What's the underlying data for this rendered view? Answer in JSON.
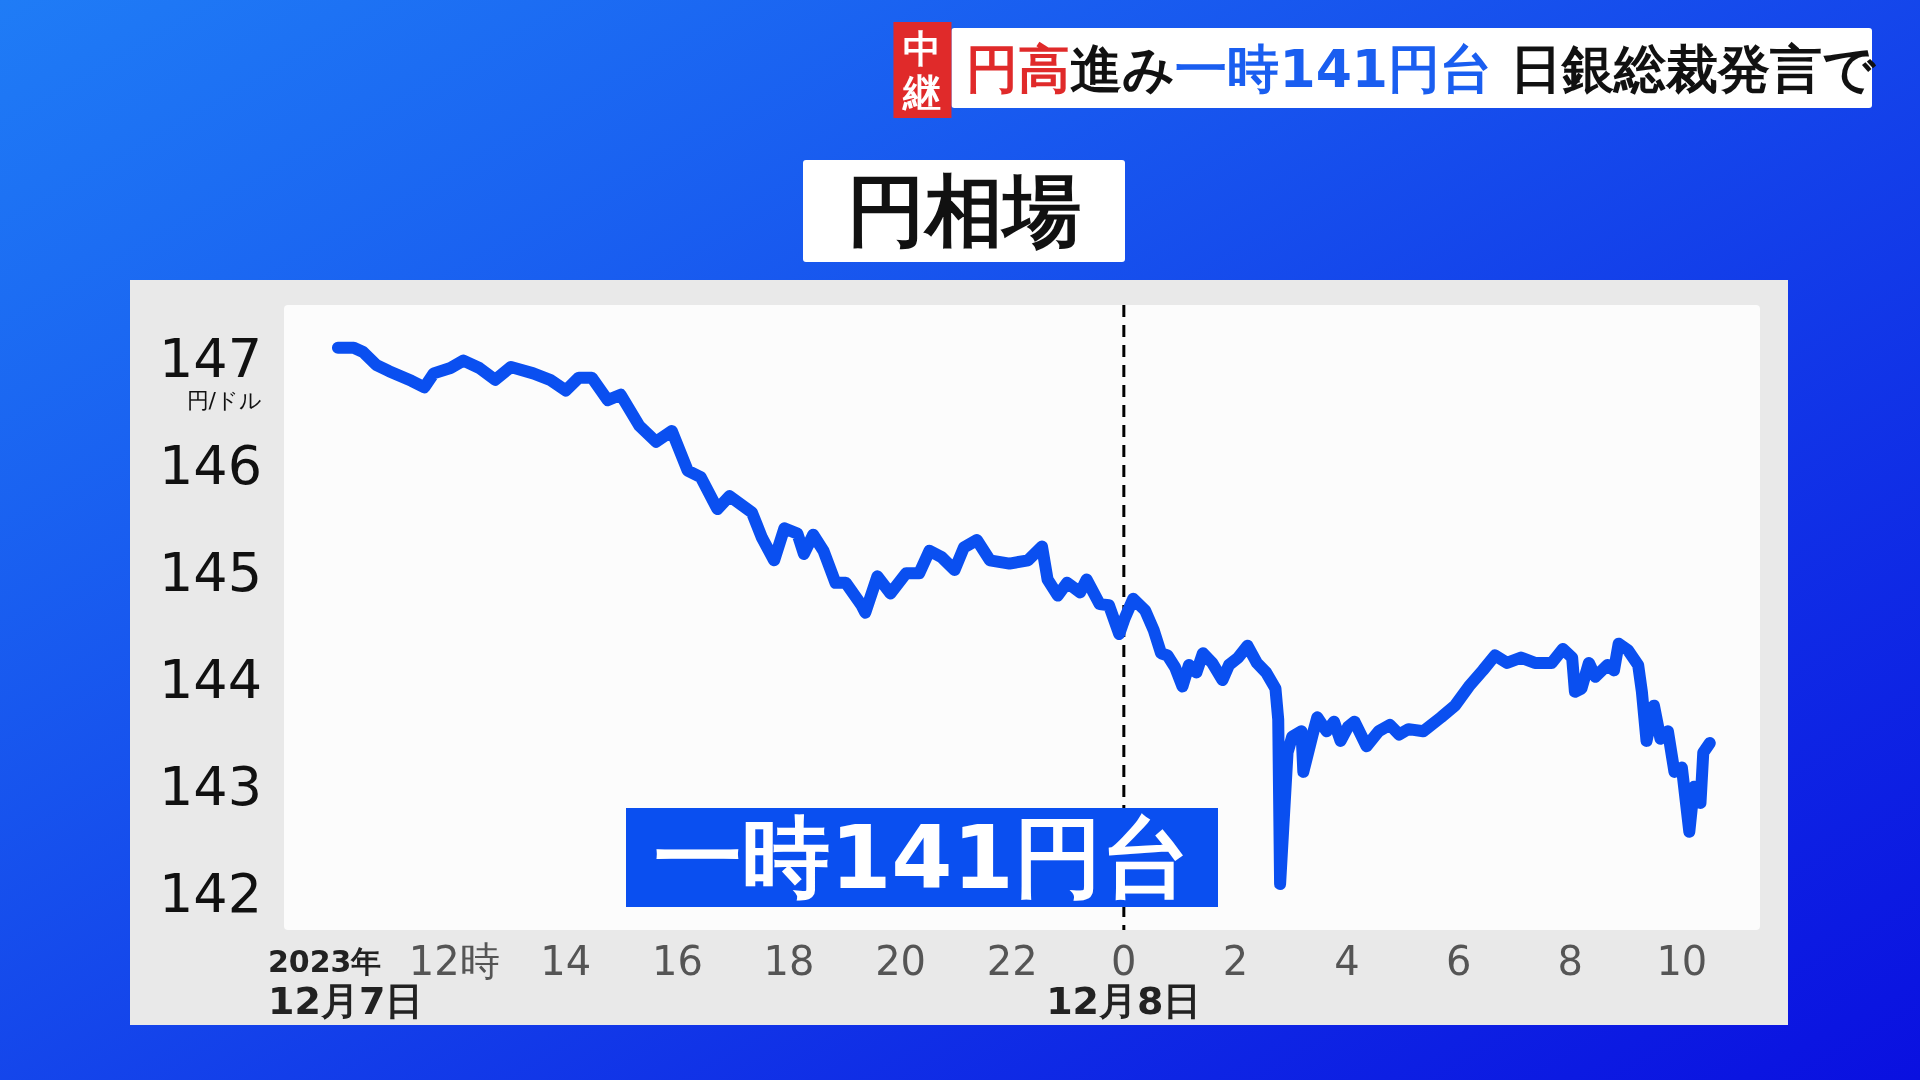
{
  "chart_data": {
    "type": "line",
    "title": "円相場",
    "ylabel": "円/ドル",
    "annotations": [
      "中継",
      "円高",
      "進み",
      "一時141円台",
      "日銀総裁発言で",
      "一時141円台",
      "2023年",
      "12月7日",
      "12月8日"
    ],
    "xlim": [
      "2023-12-07T08:57",
      "2023-12-08T11:24"
    ],
    "ylim": [
      141.65,
      147.5
    ],
    "xticks": [
      {
        "value": "2023-12-07T12:00",
        "label": "12時"
      },
      {
        "value": "2023-12-07T14:00",
        "label": "14"
      },
      {
        "value": "2023-12-07T16:00",
        "label": "16"
      },
      {
        "value": "2023-12-07T18:00",
        "label": "18"
      },
      {
        "value": "2023-12-07T20:00",
        "label": "20"
      },
      {
        "value": "2023-12-07T22:00",
        "label": "22"
      },
      {
        "value": "2023-12-08T00:00",
        "label": "0"
      },
      {
        "value": "2023-12-08T02:00",
        "label": "2"
      },
      {
        "value": "2023-12-08T04:00",
        "label": "4"
      },
      {
        "value": "2023-12-08T06:00",
        "label": "6"
      },
      {
        "value": "2023-12-08T08:00",
        "label": "8"
      },
      {
        "value": "2023-12-08T10:00",
        "label": "10"
      }
    ],
    "yticks": [
      142,
      143,
      144,
      145,
      146,
      147
    ],
    "grid": false,
    "marker": "none",
    "line_style": "solid",
    "ref_lines": [
      {
        "axis": "x",
        "value": "2023-12-08T00:00",
        "label": null,
        "color": "#000000",
        "line_style": "dashed"
      }
    ],
    "series": [
      {
        "color": "#0a4ff0",
        "x": [
          "2023-12-07T09:55",
          "2023-12-07T10:12",
          "2023-12-07T10:22",
          "2023-12-07T10:36",
          "2023-12-07T10:50",
          "2023-12-07T11:14",
          "2023-12-07T11:28",
          "2023-12-07T11:38",
          "2023-12-07T11:56",
          "2023-12-07T12:10",
          "2023-12-07T12:27",
          "2023-12-07T12:44",
          "2023-12-07T13:01",
          "2023-12-07T13:25",
          "2023-12-07T13:43",
          "2023-12-07T14:00",
          "2023-12-07T14:14",
          "2023-12-07T14:28",
          "2023-12-07T14:45",
          "2023-12-07T14:59",
          "2023-12-07T15:19",
          "2023-12-07T15:37",
          "2023-12-07T15:54",
          "2023-12-07T16:11",
          "2023-12-07T16:25",
          "2023-12-07T16:43",
          "2023-12-07T16:56",
          "2023-12-07T17:20",
          "2023-12-07T17:31",
          "2023-12-07T17:44",
          "2023-12-07T17:55",
          "2023-12-07T18:09",
          "2023-12-07T18:16",
          "2023-12-07T18:26",
          "2023-12-07T18:37",
          "2023-12-07T18:50",
          "2023-12-07T19:01",
          "2023-12-07T19:18",
          "2023-12-07T19:22",
          "2023-12-07T19:35",
          "2023-12-07T19:49",
          "2023-12-07T20:06",
          "2023-12-07T20:20",
          "2023-12-07T20:31",
          "2023-12-07T20:44",
          "2023-12-07T20:58",
          "2023-12-07T21:08",
          "2023-12-07T21:22",
          "2023-12-07T21:36",
          "2023-12-07T21:57",
          "2023-12-07T22:17",
          "2023-12-07T22:32",
          "2023-12-07T22:38",
          "2023-12-07T22:49",
          "2023-12-07T22:59",
          "2023-12-07T23:13",
          "2023-12-07T23:20",
          "2023-12-07T23:34",
          "2023-12-07T23:44",
          "2023-12-07T23:55",
          "2023-12-08T00:01",
          "2023-12-08T00:10",
          "2023-12-08T00:23",
          "2023-12-08T00:32",
          "2023-12-08T00:40",
          "2023-12-08T00:47",
          "2023-12-08T00:55",
          "2023-12-08T01:03",
          "2023-12-08T01:10",
          "2023-12-08T01:18",
          "2023-12-08T01:25",
          "2023-12-08T01:35",
          "2023-12-08T01:46",
          "2023-12-08T01:53",
          "2023-12-08T02:03",
          "2023-12-08T02:13",
          "2023-12-08T02:23",
          "2023-12-08T02:33",
          "2023-12-08T02:43",
          "2023-12-08T02:46",
          "2023-12-08T02:48",
          "2023-12-08T02:56",
          "2023-12-08T03:01",
          "2023-12-08T03:11",
          "2023-12-08T03:13",
          "2023-12-08T03:23",
          "2023-12-08T03:28",
          "2023-12-08T03:38",
          "2023-12-08T03:46",
          "2023-12-08T03:53",
          "2023-12-08T04:01",
          "2023-12-08T04:08",
          "2023-12-08T04:21",
          "2023-12-08T04:34",
          "2023-12-08T04:46",
          "2023-12-08T04:56",
          "2023-12-08T05:06",
          "2023-12-08T05:22",
          "2023-12-08T05:41",
          "2023-12-08T05:56",
          "2023-12-08T06:11",
          "2023-12-08T06:26",
          "2023-12-08T06:39",
          "2023-12-08T06:52",
          "2023-12-08T07:07",
          "2023-12-08T07:22",
          "2023-12-08T07:40",
          "2023-12-08T07:52",
          "2023-12-08T08:02",
          "2023-12-08T08:05",
          "2023-12-08T08:12",
          "2023-12-08T08:20",
          "2023-12-08T08:27",
          "2023-12-08T08:40",
          "2023-12-08T08:47",
          "2023-12-08T08:52",
          "2023-12-08T09:02",
          "2023-12-08T09:13",
          "2023-12-08T09:17",
          "2023-12-08T09:22",
          "2023-12-08T09:30",
          "2023-12-08T09:37",
          "2023-12-08T09:45",
          "2023-12-08T09:52",
          "2023-12-08T10:00",
          "2023-12-08T10:08",
          "2023-12-08T10:13",
          "2023-12-08T10:20",
          "2023-12-08T10:23",
          "2023-12-08T10:30"
        ],
        "values": [
          147.1,
          147.1,
          147.06,
          146.94,
          146.88,
          146.79,
          146.73,
          146.86,
          146.91,
          146.98,
          146.91,
          146.8,
          146.92,
          146.86,
          146.8,
          146.7,
          146.82,
          146.82,
          146.61,
          146.66,
          146.37,
          146.22,
          146.32,
          145.95,
          145.89,
          145.59,
          145.71,
          145.56,
          145.32,
          145.11,
          145.41,
          145.36,
          145.17,
          145.35,
          145.2,
          144.9,
          144.9,
          144.69,
          144.62,
          144.96,
          144.8,
          144.99,
          144.99,
          145.2,
          145.14,
          145.02,
          145.23,
          145.3,
          145.11,
          145.08,
          145.11,
          145.24,
          144.93,
          144.78,
          144.9,
          144.81,
          144.93,
          144.7,
          144.69,
          144.42,
          144.57,
          144.75,
          144.64,
          144.46,
          144.24,
          144.22,
          144.11,
          143.93,
          144.13,
          144.06,
          144.24,
          144.15,
          143.99,
          144.13,
          144.2,
          144.31,
          144.15,
          144.06,
          143.91,
          143.62,
          142.08,
          143.31,
          143.46,
          143.51,
          143.13,
          143.48,
          143.64,
          143.51,
          143.6,
          143.42,
          143.55,
          143.6,
          143.37,
          143.51,
          143.57,
          143.48,
          143.53,
          143.51,
          143.64,
          143.75,
          143.93,
          144.08,
          144.22,
          144.15,
          144.2,
          144.15,
          144.15,
          144.28,
          144.2,
          143.88,
          143.91,
          144.15,
          144.02,
          144.13,
          144.08,
          144.33,
          144.27,
          144.13,
          143.88,
          143.42,
          143.75,
          143.44,
          143.51,
          143.13,
          143.17,
          142.57,
          142.99,
          142.84,
          143.31,
          143.4
        ]
      }
    ]
  }
}
